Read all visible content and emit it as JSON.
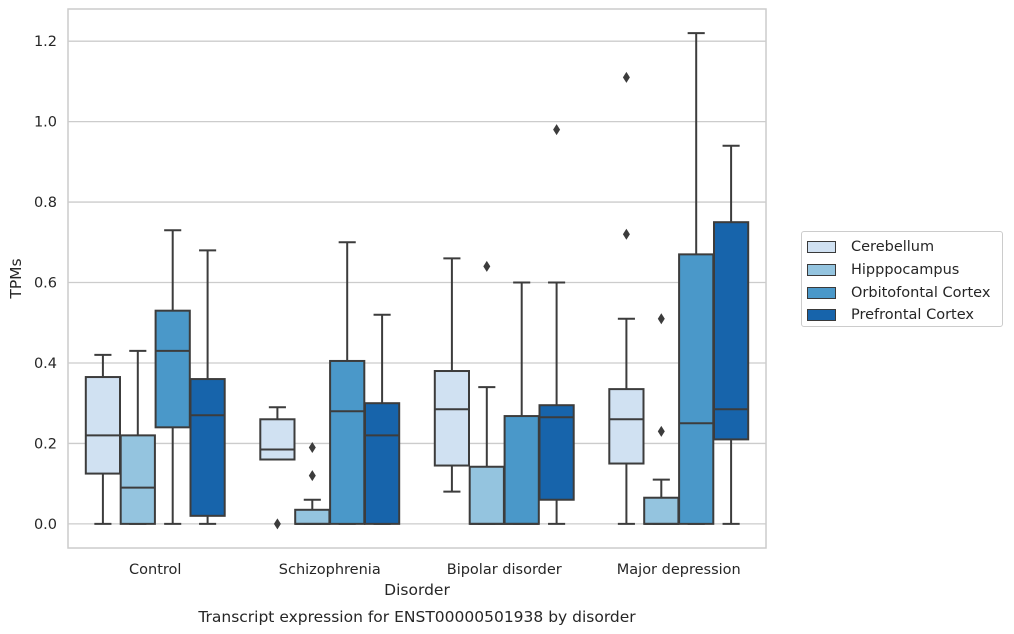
{
  "chart_data": {
    "type": "box",
    "title": "Transcript expression for ENST00000501938 by disorder",
    "xlabel": "Disorder",
    "ylabel": "TPMs",
    "ylim": [
      -0.06,
      1.28
    ],
    "yticks": [
      "0.0",
      "0.2",
      "0.4",
      "0.6",
      "0.8",
      "1.0",
      "1.2"
    ],
    "grid": "horizontal",
    "legend_position": "right",
    "categories": [
      "Control",
      "Schizophrenia",
      "Bipolar disorder",
      "Major depression"
    ],
    "series": [
      {
        "name": "Cerebellum",
        "color": "#d0e1f2",
        "boxes": [
          {
            "whisker_low": 0.0,
            "q1": 0.125,
            "median": 0.22,
            "q3": 0.365,
            "whisker_high": 0.42,
            "outliers": []
          },
          {
            "whisker_low": 0.16,
            "q1": 0.16,
            "median": 0.185,
            "q3": 0.26,
            "whisker_high": 0.29,
            "outliers": [
              0.0
            ]
          },
          {
            "whisker_low": 0.08,
            "q1": 0.145,
            "median": 0.285,
            "q3": 0.38,
            "whisker_high": 0.66,
            "outliers": []
          },
          {
            "whisker_low": 0.0,
            "q1": 0.15,
            "median": 0.26,
            "q3": 0.335,
            "whisker_high": 0.51,
            "outliers": [
              0.72,
              1.11
            ]
          }
        ]
      },
      {
        "name": "Hipppocampus",
        "color": "#94c4df",
        "boxes": [
          {
            "whisker_low": 0.0,
            "q1": 0.0,
            "median": 0.09,
            "q3": 0.22,
            "whisker_high": 0.43,
            "outliers": []
          },
          {
            "whisker_low": 0.0,
            "q1": 0.0,
            "median": 0.0,
            "q3": 0.035,
            "whisker_high": 0.06,
            "outliers": [
              0.12,
              0.19
            ]
          },
          {
            "whisker_low": 0.0,
            "q1": 0.0,
            "median": 0.0,
            "q3": 0.142,
            "whisker_high": 0.34,
            "outliers": [
              0.64
            ]
          },
          {
            "whisker_low": 0.0,
            "q1": 0.0,
            "median": 0.0,
            "q3": 0.065,
            "whisker_high": 0.11,
            "outliers": [
              0.23,
              0.51
            ]
          }
        ]
      },
      {
        "name": "Orbitofontal Cortex",
        "color": "#4a98c9",
        "boxes": [
          {
            "whisker_low": 0.0,
            "q1": 0.24,
            "median": 0.43,
            "q3": 0.53,
            "whisker_high": 0.73,
            "outliers": []
          },
          {
            "whisker_low": 0.0,
            "q1": 0.0,
            "median": 0.28,
            "q3": 0.405,
            "whisker_high": 0.7,
            "outliers": []
          },
          {
            "whisker_low": 0.0,
            "q1": 0.0,
            "median": 0.0,
            "q3": 0.268,
            "whisker_high": 0.6,
            "outliers": []
          },
          {
            "whisker_low": 0.0,
            "q1": 0.0,
            "median": 0.25,
            "q3": 0.67,
            "whisker_high": 1.22,
            "outliers": []
          }
        ]
      },
      {
        "name": "Prefrontal Cortex",
        "color": "#1764ab",
        "boxes": [
          {
            "whisker_low": 0.0,
            "q1": 0.02,
            "median": 0.27,
            "q3": 0.36,
            "whisker_high": 0.68,
            "outliers": []
          },
          {
            "whisker_low": 0.0,
            "q1": 0.0,
            "median": 0.22,
            "q3": 0.3,
            "whisker_high": 0.52,
            "outliers": []
          },
          {
            "whisker_low": 0.0,
            "q1": 0.06,
            "median": 0.265,
            "q3": 0.295,
            "whisker_high": 0.6,
            "outliers": [
              0.98
            ]
          },
          {
            "whisker_low": 0.0,
            "q1": 0.21,
            "median": 0.285,
            "q3": 0.75,
            "whisker_high": 0.94,
            "outliers": []
          }
        ]
      }
    ]
  }
}
